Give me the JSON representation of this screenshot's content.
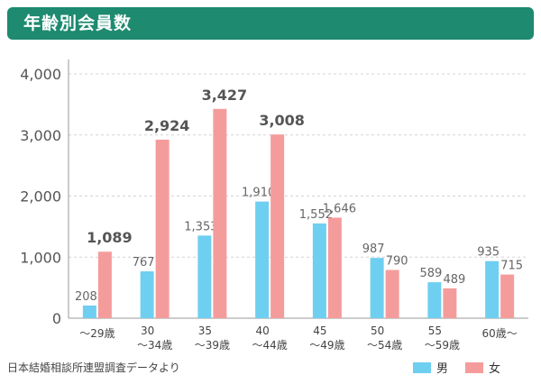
{
  "header": {
    "title": "年齢別会員数"
  },
  "footer": {
    "source": "日本結婚相談所連盟調査データより"
  },
  "colors": {
    "male": "#6fcff0",
    "female": "#f49c9c",
    "header_bg": "#1e8a70"
  },
  "chart_data": {
    "type": "bar",
    "title": "年齢別会員数",
    "xlabel": "",
    "ylabel": "",
    "ylim": [
      0,
      4000
    ],
    "yticks": [
      0,
      1000,
      2000,
      3000,
      4000
    ],
    "ytick_labels": [
      "0",
      "1,000",
      "2,000",
      "3,000",
      "4,000"
    ],
    "grid": true,
    "legend": "bottom-right",
    "categories": [
      [
        "",
        "～29歳"
      ],
      [
        "30",
        "～34歳"
      ],
      [
        "35",
        "～39歳"
      ],
      [
        "40",
        "～44歳"
      ],
      [
        "45",
        "～49歳"
      ],
      [
        "50",
        "～54歳"
      ],
      [
        "55",
        "～59歳"
      ],
      [
        "",
        "60歳～"
      ]
    ],
    "series": [
      {
        "name": "男",
        "color": "#6fcff0",
        "values": [
          208,
          767,
          1353,
          1910,
          1552,
          987,
          589,
          935
        ],
        "labels": [
          "208",
          "767",
          "1,353",
          "1,910",
          "1,552",
          "987",
          "589",
          "935"
        ]
      },
      {
        "name": "女",
        "color": "#f49c9c",
        "values": [
          1089,
          2924,
          3427,
          3008,
          1646,
          790,
          489,
          715
        ],
        "labels": [
          "1,089",
          "2,924",
          "3,427",
          "3,008",
          "1,646",
          "790",
          "489",
          "715"
        ],
        "bold": [
          true,
          true,
          true,
          true,
          false,
          false,
          false,
          false
        ]
      }
    ]
  }
}
